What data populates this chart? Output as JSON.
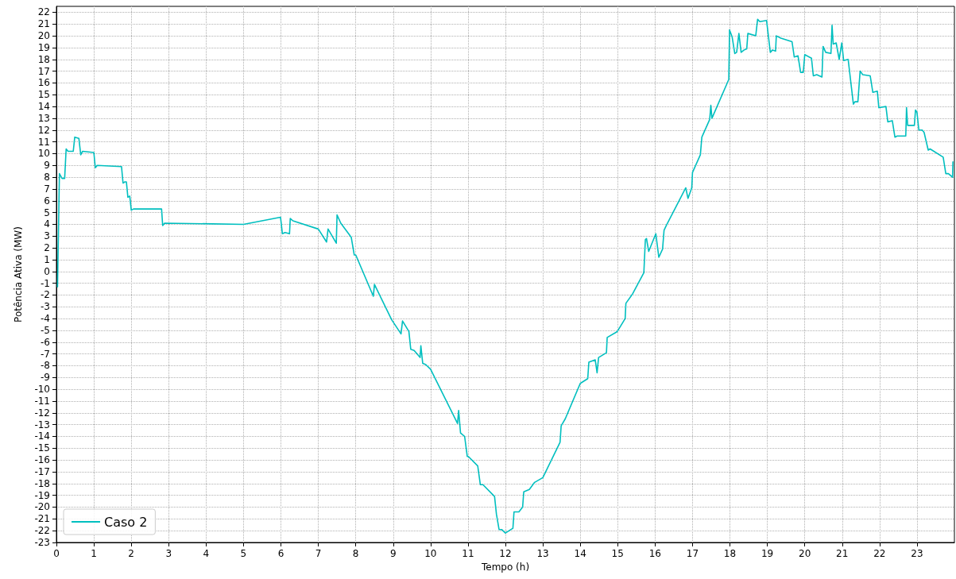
{
  "chart_data": {
    "type": "line",
    "xlabel": "Tempo (h)",
    "ylabel": "Potência Ativa (MW)",
    "xlim": [
      0,
      24
    ],
    "xticks": [
      0,
      1,
      2,
      3,
      4,
      5,
      6,
      7,
      8,
      9,
      10,
      11,
      12,
      13,
      14,
      15,
      16,
      17,
      18,
      19,
      20,
      21,
      22,
      23
    ],
    "ylim": [
      -23,
      22.5
    ],
    "yticks": [
      -23,
      -22,
      -21,
      -20,
      -19,
      -18,
      -17,
      -16,
      -15,
      -14,
      -13,
      -12,
      -11,
      -10,
      -9,
      -8,
      -7,
      -6,
      -5,
      -4,
      -3,
      -2,
      -1,
      0,
      1,
      2,
      3,
      4,
      5,
      6,
      7,
      8,
      9,
      10,
      11,
      12,
      13,
      14,
      15,
      16,
      17,
      18,
      19,
      20,
      21,
      22
    ],
    "grid": true,
    "legend": "bottom left",
    "marker": "none",
    "line_style": "solid",
    "series": [
      {
        "name": "Caso 2",
        "color": "#00bfbf",
        "x": [
          0.03,
          0.08,
          0.15,
          0.22,
          0.26,
          0.31,
          0.45,
          0.49,
          0.6,
          0.65,
          0.7,
          1.0,
          1.04,
          1.09,
          1.74,
          1.78,
          1.83,
          1.87,
          1.91,
          1.96,
          2.0,
          2.06,
          2.81,
          2.84,
          2.89,
          5.0,
          5.99,
          6.04,
          6.11,
          6.23,
          6.25,
          6.32,
          7.0,
          7.22,
          7.26,
          7.48,
          7.5,
          7.6,
          7.88,
          7.96,
          8.0,
          8.47,
          8.5,
          8.96,
          9.21,
          9.25,
          9.42,
          9.47,
          9.56,
          9.72,
          9.74,
          9.79,
          9.87,
          10.0,
          10.72,
          10.75,
          10.8,
          10.91,
          10.98,
          11.01,
          11.26,
          11.33,
          11.4,
          11.71,
          11.76,
          11.83,
          11.9,
          12.0,
          12.2,
          12.23,
          12.36,
          12.46,
          12.49,
          12.64,
          12.78,
          13.0,
          13.46,
          13.49,
          13.6,
          14.0,
          14.2,
          14.23,
          14.4,
          14.45,
          14.49,
          14.7,
          14.72,
          14.99,
          15.2,
          15.22,
          15.4,
          15.7,
          15.74,
          15.77,
          15.83,
          16.02,
          16.1,
          16.2,
          16.24,
          16.3,
          16.82,
          16.88,
          16.98,
          17.0,
          17.21,
          17.25,
          17.46,
          17.49,
          17.52,
          17.97,
          17.99,
          18.06,
          18.13,
          18.18,
          18.24,
          18.3,
          18.38,
          18.45,
          18.48,
          18.69,
          18.74,
          18.8,
          18.98,
          19.08,
          19.14,
          19.22,
          19.24,
          19.36,
          19.66,
          19.72,
          19.82,
          19.89,
          19.96,
          20.0,
          20.18,
          20.23,
          20.32,
          20.46,
          20.49,
          20.56,
          20.7,
          20.73,
          20.76,
          20.84,
          20.92,
          20.99,
          21.04,
          21.16,
          21.3,
          21.34,
          21.42,
          21.48,
          21.55,
          21.75,
          21.82,
          21.94,
          21.98,
          22.17,
          22.22,
          22.34,
          22.41,
          22.47,
          22.7,
          22.72,
          22.75,
          22.93,
          22.96,
          23.0,
          23.05,
          23.14,
          23.19,
          23.3,
          23.35,
          23.7,
          23.77,
          23.84,
          23.95,
          23.96
        ],
        "values": [
          -1.3,
          8.3,
          7.9,
          7.9,
          10.4,
          10.2,
          10.2,
          11.4,
          11.3,
          9.9,
          10.2,
          10.1,
          8.8,
          9.0,
          8.9,
          7.5,
          7.6,
          7.6,
          6.3,
          6.4,
          5.2,
          5.3,
          5.3,
          3.9,
          4.1,
          4.0,
          4.6,
          3.2,
          3.3,
          3.2,
          4.5,
          4.3,
          3.6,
          2.5,
          3.6,
          2.4,
          4.8,
          4.1,
          2.9,
          1.4,
          1.4,
          -2.1,
          -1.1,
          -4.1,
          -5.3,
          -4.2,
          -5.1,
          -6.6,
          -6.7,
          -7.3,
          -6.3,
          -7.8,
          -7.9,
          -8.3,
          -12.9,
          -11.8,
          -13.7,
          -14.0,
          -15.7,
          -15.7,
          -16.5,
          -18.1,
          -18.1,
          -19.1,
          -20.6,
          -21.9,
          -21.9,
          -22.2,
          -21.8,
          -20.4,
          -20.4,
          -20.0,
          -18.7,
          -18.5,
          -17.9,
          -17.5,
          -14.5,
          -13.1,
          -12.5,
          -9.5,
          -9.1,
          -7.7,
          -7.5,
          -8.6,
          -7.3,
          -6.9,
          -5.6,
          -5.1,
          -4.0,
          -2.7,
          -1.9,
          -0.1,
          2.7,
          2.8,
          1.7,
          3.2,
          1.2,
          1.9,
          3.5,
          3.9,
          7.1,
          6.2,
          7.1,
          8.4,
          9.9,
          11.4,
          12.9,
          14.1,
          13.0,
          16.3,
          20.5,
          19.9,
          18.5,
          18.6,
          20.2,
          18.6,
          18.8,
          18.9,
          20.2,
          20.0,
          21.4,
          21.2,
          21.3,
          18.6,
          18.8,
          18.7,
          20.0,
          19.8,
          19.5,
          18.2,
          18.3,
          16.9,
          16.9,
          18.4,
          18.1,
          16.6,
          16.7,
          16.5,
          19.1,
          18.6,
          18.5,
          20.9,
          19.3,
          19.4,
          18.0,
          19.4,
          17.9,
          18.0,
          14.2,
          14.4,
          14.4,
          17.0,
          16.7,
          16.6,
          15.2,
          15.3,
          13.9,
          14.0,
          12.7,
          12.8,
          11.4,
          11.5,
          11.5,
          13.9,
          12.4,
          12.4,
          13.7,
          13.5,
          12.0,
          12.0,
          11.8,
          10.3,
          10.4,
          9.7,
          8.3,
          8.3,
          8.0,
          9.3
        ]
      }
    ]
  }
}
